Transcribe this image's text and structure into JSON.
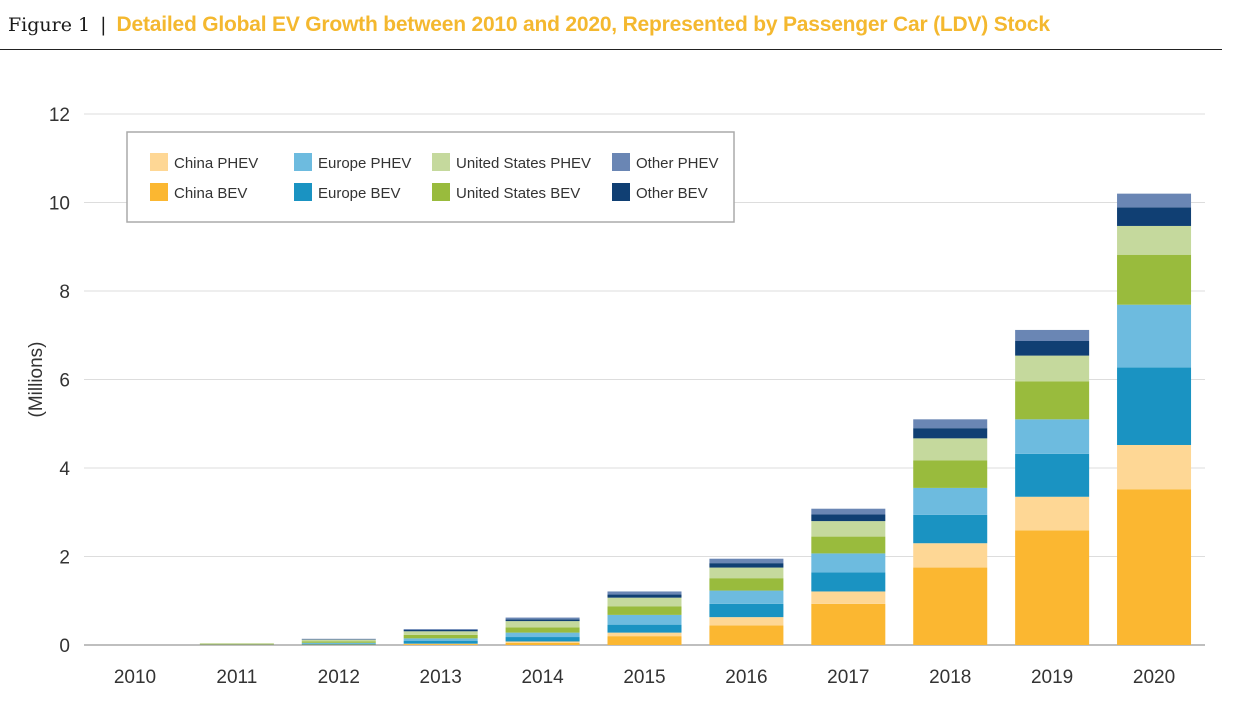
{
  "figure": {
    "label": "Figure 1",
    "separator": "|",
    "title": "Detailed Global EV Growth between 2010 and 2020, Represented by Passenger Car (LDV) Stock"
  },
  "colors": {
    "title": "#f4b82f",
    "grid": "#dddddd",
    "axis": "#999999",
    "text": "#333333"
  },
  "chart_data": {
    "type": "bar",
    "stacked": true,
    "categories": [
      "2010",
      "2011",
      "2012",
      "2013",
      "2014",
      "2015",
      "2016",
      "2017",
      "2018",
      "2019",
      "2020"
    ],
    "ylabel": "(Millions)",
    "xlabel": "",
    "ylim": [
      0,
      12
    ],
    "yticks": [
      0,
      2,
      4,
      6,
      8,
      10,
      12
    ],
    "grid": true,
    "legend": "top-left",
    "series": [
      {
        "name": "China BEV",
        "color": "#fbb731",
        "values": [
          0.0,
          0.01,
          0.01,
          0.02,
          0.05,
          0.2,
          0.44,
          0.93,
          1.75,
          2.59,
          3.52
        ]
      },
      {
        "name": "China PHEV",
        "color": "#fed795",
        "values": [
          0.0,
          0.0,
          0.0,
          0.01,
          0.03,
          0.08,
          0.19,
          0.28,
          0.55,
          0.76,
          1.0
        ]
      },
      {
        "name": "Europe BEV",
        "color": "#1a93c2",
        "values": [
          0.0,
          0.01,
          0.02,
          0.06,
          0.1,
          0.18,
          0.3,
          0.43,
          0.64,
          0.97,
          1.75
        ]
      },
      {
        "name": "Europe PHEV",
        "color": "#6dbbdf",
        "values": [
          0.0,
          0.0,
          0.02,
          0.06,
          0.1,
          0.22,
          0.3,
          0.43,
          0.61,
          0.78,
          1.42
        ]
      },
      {
        "name": "United States BEV",
        "color": "#99bb3d",
        "values": [
          0.0,
          0.01,
          0.03,
          0.08,
          0.12,
          0.19,
          0.28,
          0.38,
          0.62,
          0.86,
          1.13
        ]
      },
      {
        "name": "United States PHEV",
        "color": "#c5d99d",
        "values": [
          0.0,
          0.01,
          0.04,
          0.08,
          0.14,
          0.2,
          0.24,
          0.35,
          0.5,
          0.58,
          0.65
        ]
      },
      {
        "name": "Other BEV",
        "color": "#103f73",
        "values": [
          0.0,
          0.0,
          0.01,
          0.03,
          0.04,
          0.07,
          0.1,
          0.15,
          0.23,
          0.33,
          0.42
        ]
      },
      {
        "name": "Other PHEV",
        "color": "#6a86b4",
        "values": [
          0.0,
          0.0,
          0.01,
          0.02,
          0.04,
          0.07,
          0.1,
          0.13,
          0.2,
          0.25,
          0.31
        ]
      }
    ],
    "legend_order": [
      "China PHEV",
      "Europe PHEV",
      "United States PHEV",
      "Other PHEV",
      "China BEV",
      "Europe BEV",
      "United States BEV",
      "Other BEV"
    ]
  }
}
